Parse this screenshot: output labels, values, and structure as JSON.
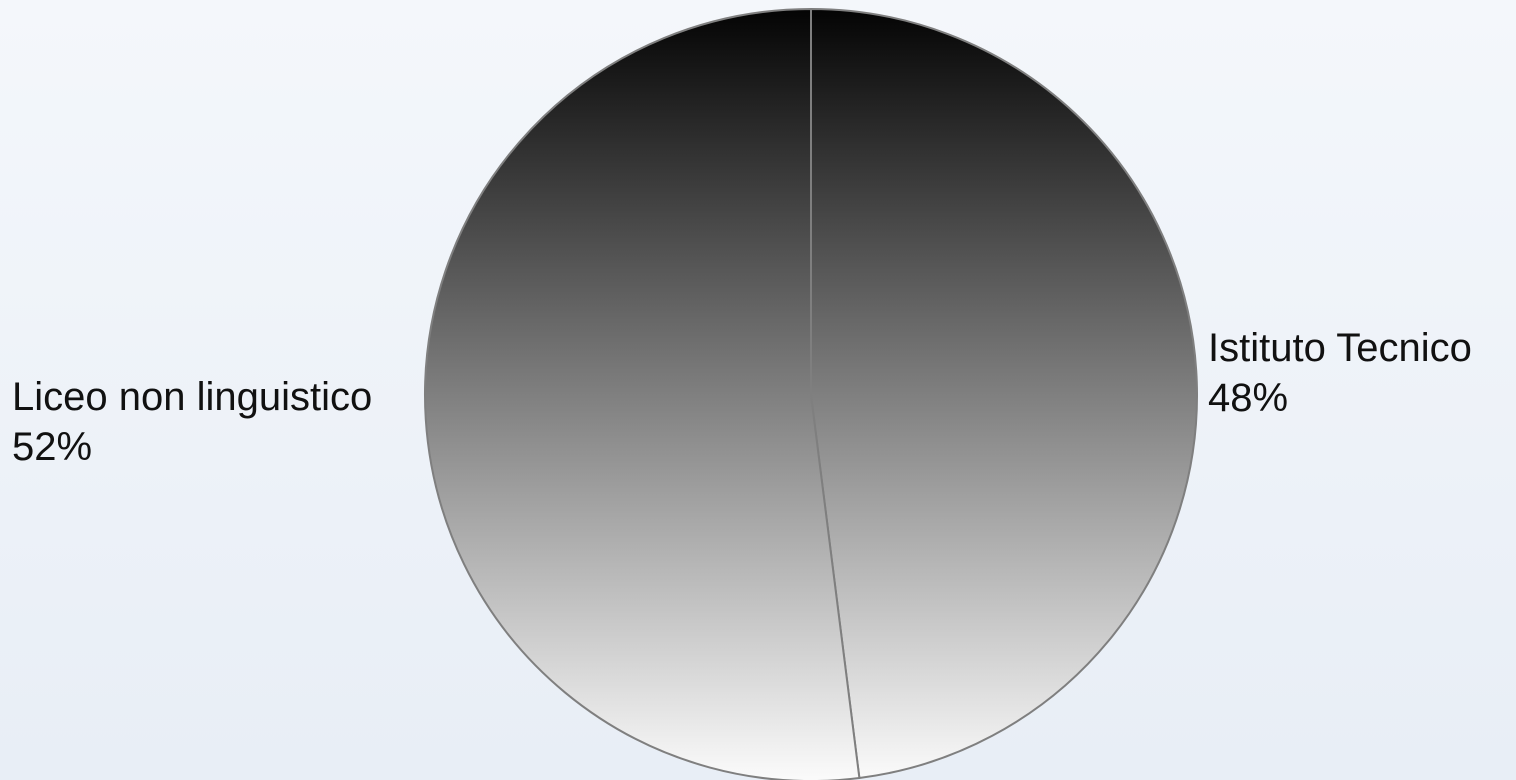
{
  "chart_data": {
    "type": "pie",
    "title": "",
    "slices": [
      {
        "label": "Istituto Tecnico",
        "value": 48,
        "value_label": "48%",
        "side": "right"
      },
      {
        "label": "Liceo non linguistico",
        "value": 52,
        "value_label": "52%",
        "side": "left"
      }
    ],
    "fill": {
      "style": "vertical-gradient",
      "top_color": "#050505",
      "bottom_color": "#fafafa"
    },
    "stroke_color": "#7f7f7f",
    "legend": "none",
    "start_angle": "top",
    "direction": "clockwise"
  }
}
